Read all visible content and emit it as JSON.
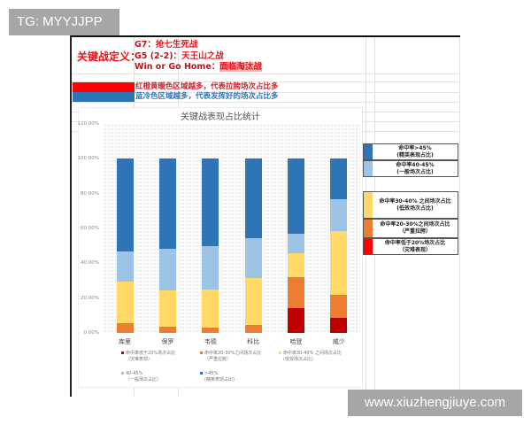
{
  "watermarks": {
    "top_left": "TG: MYYJJPP",
    "bottom_right": "www.xiuzhengjiuye.com"
  },
  "definition": {
    "label": "关键战定义：",
    "lines": [
      {
        "key": "G7：",
        "value": "抢七生死战"
      },
      {
        "key": "G5 (2-2)：",
        "value": "天王山之战"
      },
      {
        "key": "Win or Go Home：",
        "value": "面临淘汰战"
      }
    ]
  },
  "color_notes": [
    {
      "color": "#ff0000",
      "text": "红橙黄暖色区域越多，代表拉胯场次占比多",
      "text_color": "#d0202a"
    },
    {
      "color": "#2e75b6",
      "text": "蓝冷色区域越多，代表发挥好的场次占比多",
      "text_color": "#2e75b6"
    }
  ],
  "chart_data": {
    "type": "bar",
    "stacked": true,
    "title": "关键战表现占比统计",
    "xlabel": "",
    "ylabel": "",
    "ylim": [
      0,
      1.2
    ],
    "yticks": [
      "0.00%",
      "20.00%",
      "40.00%",
      "60.00%",
      "80.00%",
      "100.00%",
      "120.00%"
    ],
    "categories": [
      "库里",
      "保罗",
      "韦德",
      "科比",
      "哈登",
      "威少"
    ],
    "series": [
      {
        "name": "命中率低于20%场次占比（灾难表现）",
        "color": "#c00000",
        "values": [
          0.0,
          0.0,
          0.0,
          0.0,
          0.143,
          0.085
        ]
      },
      {
        "name": "命中率20-30%之间场次占比（严重拉胯）",
        "color": "#ed7d31",
        "values": [
          0.056,
          0.038,
          0.033,
          0.045,
          0.177,
          0.135
        ]
      },
      {
        "name": "命中率30-40% 之间场次占比（低效场次占比）",
        "color": "#ffd966",
        "values": [
          0.238,
          0.206,
          0.217,
          0.272,
          0.14,
          0.367
        ]
      },
      {
        "name": "40-45%（一般场次占比）",
        "color": "#9dc3e6",
        "values": [
          0.176,
          0.238,
          0.25,
          0.228,
          0.11,
          0.183
        ]
      },
      {
        "name": ">45%（精英表现占比）",
        "color": "#2e75b6",
        "values": [
          0.53,
          0.518,
          0.5,
          0.455,
          0.43,
          0.23
        ]
      }
    ],
    "legend_position": "bottom",
    "grid": false
  },
  "chart_legend": [
    {
      "line1": "命中率低于20%场次占比",
      "line2": "（灾难表现）",
      "color": "#c00000"
    },
    {
      "line1": "命中率20-30%之间场次占比",
      "line2": "（严重拉胯）",
      "color": "#ed7d31"
    },
    {
      "line1": "命中率30-40% 之间场次占比",
      "line2": "(低效场次占比)",
      "color": "#ffd966"
    },
    {
      "line1": "40-45%",
      "line2": "（一般场次占比）",
      "color": "#9dc3e6"
    },
    {
      "line1": ">45%",
      "line2": "(精英表现占比)",
      "color": "#2e75b6"
    }
  ],
  "side_legend": [
    {
      "line1": "命中率>45%",
      "line2": "(精英表现占比)",
      "color": "#2e75b6"
    },
    {
      "line1": "命中率40-45%",
      "line2": "(一般场次占比)",
      "color": "#9dc3e6"
    },
    {
      "line1": "命中率30-40% 之间场次占比",
      "line2": "(低效场次占比)",
      "color": "#ffd966"
    },
    {
      "line1": "命中率20-30%之间场次占比",
      "line2": "（严重拉胯）",
      "color": "#ed7d31"
    },
    {
      "line1": "命中率低于20%场次占比",
      "line2": "（灾难表现）",
      "color": "#ff0000"
    }
  ]
}
